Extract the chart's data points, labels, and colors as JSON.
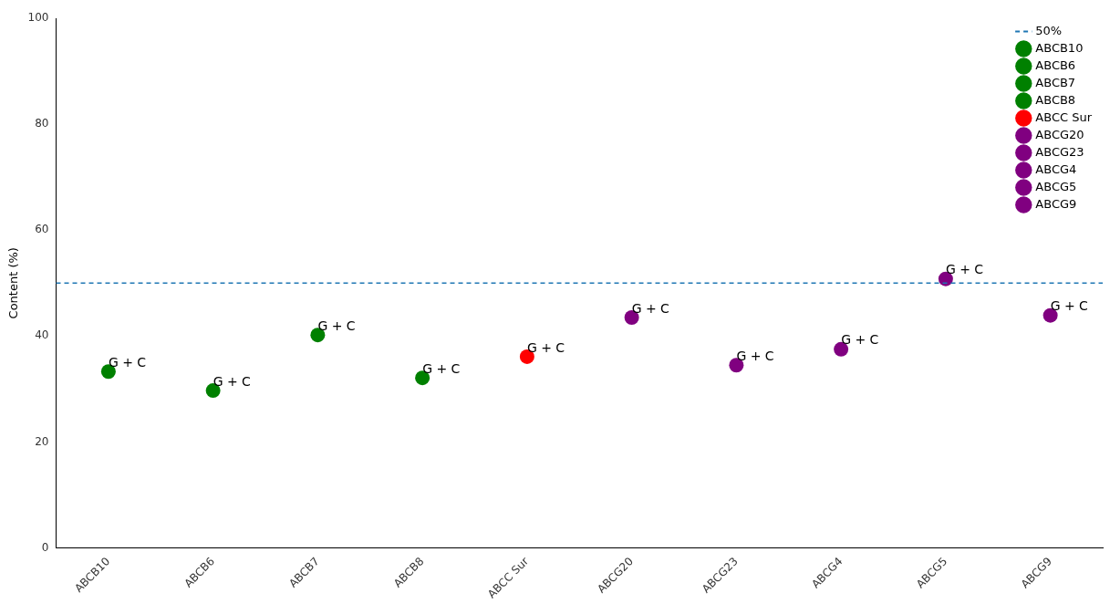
{
  "chart_data": {
    "type": "scatter",
    "ylabel": "Content (%)",
    "categories": [
      "ABCB10",
      "ABCB6",
      "ABCB7",
      "ABCB8",
      "ABCC Sur",
      "ABCG20",
      "ABCG23",
      "ABCG4",
      "ABCG5",
      "ABCG9"
    ],
    "series": [
      {
        "name": "ABCB10",
        "color": "#008000",
        "x": [
          "ABCB10"
        ],
        "values": [
          33.3
        ]
      },
      {
        "name": "ABCB6",
        "color": "#008000",
        "x": [
          "ABCB6"
        ],
        "values": [
          29.7
        ]
      },
      {
        "name": "ABCB7",
        "color": "#008000",
        "x": [
          "ABCB7"
        ],
        "values": [
          40.2
        ]
      },
      {
        "name": "ABCB8",
        "color": "#008000",
        "x": [
          "ABCB8"
        ],
        "values": [
          32.1
        ]
      },
      {
        "name": "ABCC Sur",
        "color": "#ff0000",
        "x": [
          "ABCC Sur"
        ],
        "values": [
          36.1
        ]
      },
      {
        "name": "ABCG20",
        "color": "#800080",
        "x": [
          "ABCG20"
        ],
        "values": [
          43.5
        ]
      },
      {
        "name": "ABCG23",
        "color": "#800080",
        "x": [
          "ABCG23"
        ],
        "values": [
          34.5
        ]
      },
      {
        "name": "ABCG4",
        "color": "#800080",
        "x": [
          "ABCG4"
        ],
        "values": [
          37.5
        ]
      },
      {
        "name": "ABCG5",
        "color": "#800080",
        "x": [
          "ABCG5"
        ],
        "values": [
          50.8
        ]
      },
      {
        "name": "ABCG9",
        "color": "#800080",
        "x": [
          "ABCG9"
        ],
        "values": [
          43.9
        ]
      }
    ],
    "ylim": [
      0,
      100
    ],
    "yticks": [
      0,
      20,
      40,
      60,
      80,
      100
    ],
    "ref_lines": [
      {
        "axis": "y",
        "value": 50,
        "label": "50%",
        "color": "#1f77b4",
        "line_style": "dashed"
      }
    ],
    "annotations": [
      {
        "text": "G + C",
        "x": "ABCB10",
        "y": 33.3
      },
      {
        "text": "G + C",
        "x": "ABCB6",
        "y": 29.7
      },
      {
        "text": "G + C",
        "x": "ABCB7",
        "y": 40.2
      },
      {
        "text": "G + C",
        "x": "ABCB8",
        "y": 32.1
      },
      {
        "text": "G + C",
        "x": "ABCC Sur",
        "y": 36.1
      },
      {
        "text": "G + C",
        "x": "ABCG20",
        "y": 43.5
      },
      {
        "text": "G + C",
        "x": "ABCG23",
        "y": 34.5
      },
      {
        "text": "G + C",
        "x": "ABCG4",
        "y": 37.5
      },
      {
        "text": "G + C",
        "x": "ABCG5",
        "y": 50.8
      },
      {
        "text": "G + C",
        "x": "ABCG9",
        "y": 43.9
      }
    ],
    "legend": "top right",
    "grid": false,
    "marker": "circle"
  }
}
